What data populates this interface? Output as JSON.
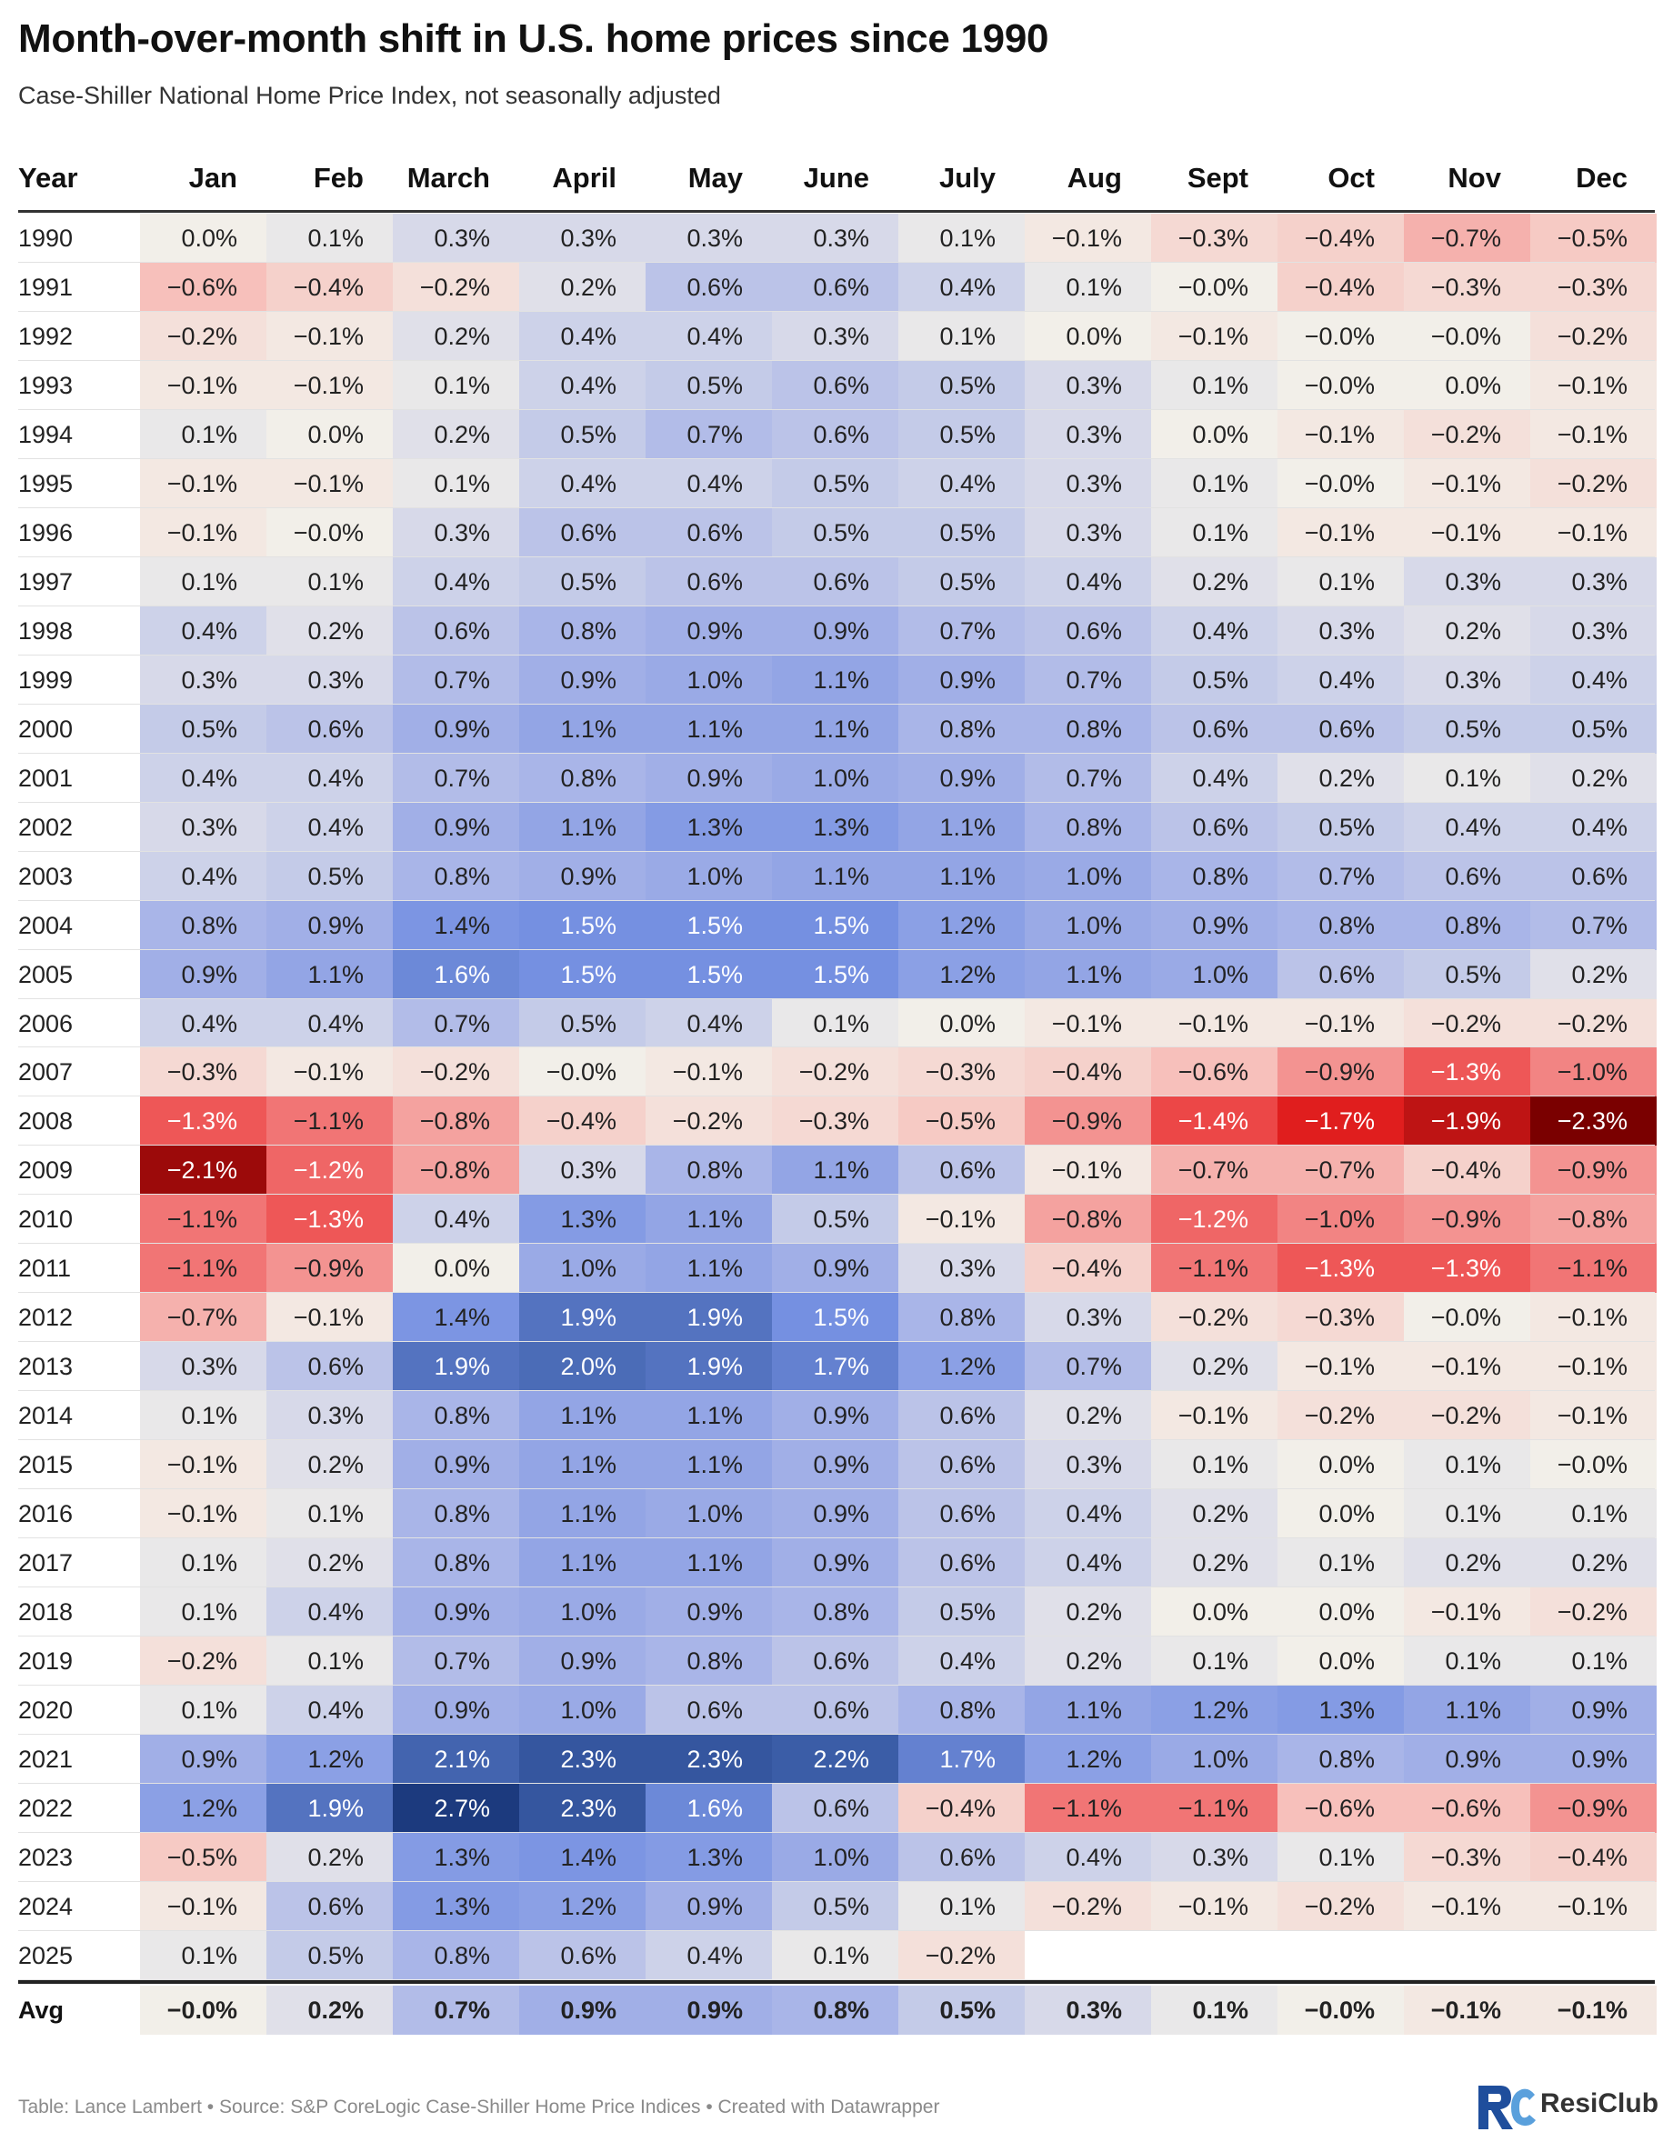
{
  "title": "Month-over-month shift in U.S. home prices since 1990",
  "subtitle": "Case-Shiller National Home Price Index, not seasonally adjusted",
  "footer": "Table: Lance Lambert • Source: S&P CoreLogic Case-Shiller Home Price Indices • Created with Datawrapper",
  "brand": "ResiClub",
  "chart_data": {
    "type": "heatmap",
    "row_header": "Year",
    "columns": [
      "Jan",
      "Feb",
      "March",
      "April",
      "May",
      "June",
      "July",
      "Aug",
      "Sept",
      "Oct",
      "Nov",
      "Dec"
    ],
    "unit": "%",
    "color_scale": {
      "negative": "#7a0000",
      "zero": "#f2efe9",
      "positive": "#1c3a7e"
    },
    "rows": [
      {
        "year": "1990",
        "values": [
          "0.0%",
          "0.1%",
          "0.3%",
          "0.3%",
          "0.3%",
          "0.3%",
          "0.1%",
          "−0.1%",
          "−0.3%",
          "−0.4%",
          "−0.7%",
          "−0.5%"
        ]
      },
      {
        "year": "1991",
        "values": [
          "−0.6%",
          "−0.4%",
          "−0.2%",
          "0.2%",
          "0.6%",
          "0.6%",
          "0.4%",
          "0.1%",
          "−0.0%",
          "−0.4%",
          "−0.3%",
          "−0.3%"
        ]
      },
      {
        "year": "1992",
        "values": [
          "−0.2%",
          "−0.1%",
          "0.2%",
          "0.4%",
          "0.4%",
          "0.3%",
          "0.1%",
          "0.0%",
          "−0.1%",
          "−0.0%",
          "−0.0%",
          "−0.2%"
        ]
      },
      {
        "year": "1993",
        "values": [
          "−0.1%",
          "−0.1%",
          "0.1%",
          "0.4%",
          "0.5%",
          "0.6%",
          "0.5%",
          "0.3%",
          "0.1%",
          "−0.0%",
          "0.0%",
          "−0.1%"
        ]
      },
      {
        "year": "1994",
        "values": [
          "0.1%",
          "0.0%",
          "0.2%",
          "0.5%",
          "0.7%",
          "0.6%",
          "0.5%",
          "0.3%",
          "0.0%",
          "−0.1%",
          "−0.2%",
          "−0.1%"
        ]
      },
      {
        "year": "1995",
        "values": [
          "−0.1%",
          "−0.1%",
          "0.1%",
          "0.4%",
          "0.4%",
          "0.5%",
          "0.4%",
          "0.3%",
          "0.1%",
          "−0.0%",
          "−0.1%",
          "−0.2%"
        ]
      },
      {
        "year": "1996",
        "values": [
          "−0.1%",
          "−0.0%",
          "0.3%",
          "0.6%",
          "0.6%",
          "0.5%",
          "0.5%",
          "0.3%",
          "0.1%",
          "−0.1%",
          "−0.1%",
          "−0.1%"
        ]
      },
      {
        "year": "1997",
        "values": [
          "0.1%",
          "0.1%",
          "0.4%",
          "0.5%",
          "0.6%",
          "0.6%",
          "0.5%",
          "0.4%",
          "0.2%",
          "0.1%",
          "0.3%",
          "0.3%"
        ]
      },
      {
        "year": "1998",
        "values": [
          "0.4%",
          "0.2%",
          "0.6%",
          "0.8%",
          "0.9%",
          "0.9%",
          "0.7%",
          "0.6%",
          "0.4%",
          "0.3%",
          "0.2%",
          "0.3%"
        ]
      },
      {
        "year": "1999",
        "values": [
          "0.3%",
          "0.3%",
          "0.7%",
          "0.9%",
          "1.0%",
          "1.1%",
          "0.9%",
          "0.7%",
          "0.5%",
          "0.4%",
          "0.3%",
          "0.4%"
        ]
      },
      {
        "year": "2000",
        "values": [
          "0.5%",
          "0.6%",
          "0.9%",
          "1.1%",
          "1.1%",
          "1.1%",
          "0.8%",
          "0.8%",
          "0.6%",
          "0.6%",
          "0.5%",
          "0.5%"
        ]
      },
      {
        "year": "2001",
        "values": [
          "0.4%",
          "0.4%",
          "0.7%",
          "0.8%",
          "0.9%",
          "1.0%",
          "0.9%",
          "0.7%",
          "0.4%",
          "0.2%",
          "0.1%",
          "0.2%"
        ]
      },
      {
        "year": "2002",
        "values": [
          "0.3%",
          "0.4%",
          "0.9%",
          "1.1%",
          "1.3%",
          "1.3%",
          "1.1%",
          "0.8%",
          "0.6%",
          "0.5%",
          "0.4%",
          "0.4%"
        ]
      },
      {
        "year": "2003",
        "values": [
          "0.4%",
          "0.5%",
          "0.8%",
          "0.9%",
          "1.0%",
          "1.1%",
          "1.1%",
          "1.0%",
          "0.8%",
          "0.7%",
          "0.6%",
          "0.6%"
        ]
      },
      {
        "year": "2004",
        "values": [
          "0.8%",
          "0.9%",
          "1.4%",
          "1.5%",
          "1.5%",
          "1.5%",
          "1.2%",
          "1.0%",
          "0.9%",
          "0.8%",
          "0.8%",
          "0.7%"
        ]
      },
      {
        "year": "2005",
        "values": [
          "0.9%",
          "1.1%",
          "1.6%",
          "1.5%",
          "1.5%",
          "1.5%",
          "1.2%",
          "1.1%",
          "1.0%",
          "0.6%",
          "0.5%",
          "0.2%"
        ]
      },
      {
        "year": "2006",
        "values": [
          "0.4%",
          "0.4%",
          "0.7%",
          "0.5%",
          "0.4%",
          "0.1%",
          "0.0%",
          "−0.1%",
          "−0.1%",
          "−0.1%",
          "−0.2%",
          "−0.2%"
        ]
      },
      {
        "year": "2007",
        "values": [
          "−0.3%",
          "−0.1%",
          "−0.2%",
          "−0.0%",
          "−0.1%",
          "−0.2%",
          "−0.3%",
          "−0.4%",
          "−0.6%",
          "−0.9%",
          "−1.3%",
          "−1.0%"
        ]
      },
      {
        "year": "2008",
        "values": [
          "−1.3%",
          "−1.1%",
          "−0.8%",
          "−0.4%",
          "−0.2%",
          "−0.3%",
          "−0.5%",
          "−0.9%",
          "−1.4%",
          "−1.7%",
          "−1.9%",
          "−2.3%"
        ]
      },
      {
        "year": "2009",
        "values": [
          "−2.1%",
          "−1.2%",
          "−0.8%",
          "0.3%",
          "0.8%",
          "1.1%",
          "0.6%",
          "−0.1%",
          "−0.7%",
          "−0.7%",
          "−0.4%",
          "−0.9%"
        ]
      },
      {
        "year": "2010",
        "values": [
          "−1.1%",
          "−1.3%",
          "0.4%",
          "1.3%",
          "1.1%",
          "0.5%",
          "−0.1%",
          "−0.8%",
          "−1.2%",
          "−1.0%",
          "−0.9%",
          "−0.8%"
        ]
      },
      {
        "year": "2011",
        "values": [
          "−1.1%",
          "−0.9%",
          "0.0%",
          "1.0%",
          "1.1%",
          "0.9%",
          "0.3%",
          "−0.4%",
          "−1.1%",
          "−1.3%",
          "−1.3%",
          "−1.1%"
        ]
      },
      {
        "year": "2012",
        "values": [
          "−0.7%",
          "−0.1%",
          "1.4%",
          "1.9%",
          "1.9%",
          "1.5%",
          "0.8%",
          "0.3%",
          "−0.2%",
          "−0.3%",
          "−0.0%",
          "−0.1%"
        ]
      },
      {
        "year": "2013",
        "values": [
          "0.3%",
          "0.6%",
          "1.9%",
          "2.0%",
          "1.9%",
          "1.7%",
          "1.2%",
          "0.7%",
          "0.2%",
          "−0.1%",
          "−0.1%",
          "−0.1%"
        ]
      },
      {
        "year": "2014",
        "values": [
          "0.1%",
          "0.3%",
          "0.8%",
          "1.1%",
          "1.1%",
          "0.9%",
          "0.6%",
          "0.2%",
          "−0.1%",
          "−0.2%",
          "−0.2%",
          "−0.1%"
        ]
      },
      {
        "year": "2015",
        "values": [
          "−0.1%",
          "0.2%",
          "0.9%",
          "1.1%",
          "1.1%",
          "0.9%",
          "0.6%",
          "0.3%",
          "0.1%",
          "0.0%",
          "0.1%",
          "−0.0%"
        ]
      },
      {
        "year": "2016",
        "values": [
          "−0.1%",
          "0.1%",
          "0.8%",
          "1.1%",
          "1.0%",
          "0.9%",
          "0.6%",
          "0.4%",
          "0.2%",
          "0.0%",
          "0.1%",
          "0.1%"
        ]
      },
      {
        "year": "2017",
        "values": [
          "0.1%",
          "0.2%",
          "0.8%",
          "1.1%",
          "1.1%",
          "0.9%",
          "0.6%",
          "0.4%",
          "0.2%",
          "0.1%",
          "0.2%",
          "0.2%"
        ]
      },
      {
        "year": "2018",
        "values": [
          "0.1%",
          "0.4%",
          "0.9%",
          "1.0%",
          "0.9%",
          "0.8%",
          "0.5%",
          "0.2%",
          "0.0%",
          "0.0%",
          "−0.1%",
          "−0.2%"
        ]
      },
      {
        "year": "2019",
        "values": [
          "−0.2%",
          "0.1%",
          "0.7%",
          "0.9%",
          "0.8%",
          "0.6%",
          "0.4%",
          "0.2%",
          "0.1%",
          "0.0%",
          "0.1%",
          "0.1%"
        ]
      },
      {
        "year": "2020",
        "values": [
          "0.1%",
          "0.4%",
          "0.9%",
          "1.0%",
          "0.6%",
          "0.6%",
          "0.8%",
          "1.1%",
          "1.2%",
          "1.3%",
          "1.1%",
          "0.9%"
        ]
      },
      {
        "year": "2021",
        "values": [
          "0.9%",
          "1.2%",
          "2.1%",
          "2.3%",
          "2.3%",
          "2.2%",
          "1.7%",
          "1.2%",
          "1.0%",
          "0.8%",
          "0.9%",
          "0.9%"
        ]
      },
      {
        "year": "2022",
        "values": [
          "1.2%",
          "1.9%",
          "2.7%",
          "2.3%",
          "1.6%",
          "0.6%",
          "−0.4%",
          "−1.1%",
          "−1.1%",
          "−0.6%",
          "−0.6%",
          "−0.9%"
        ]
      },
      {
        "year": "2023",
        "values": [
          "−0.5%",
          "0.2%",
          "1.3%",
          "1.4%",
          "1.3%",
          "1.0%",
          "0.6%",
          "0.4%",
          "0.3%",
          "0.1%",
          "−0.3%",
          "−0.4%"
        ]
      },
      {
        "year": "2024",
        "values": [
          "−0.1%",
          "0.6%",
          "1.3%",
          "1.2%",
          "0.9%",
          "0.5%",
          "0.1%",
          "−0.2%",
          "−0.1%",
          "−0.2%",
          "−0.1%",
          "−0.1%"
        ]
      },
      {
        "year": "2025",
        "values": [
          "0.1%",
          "0.5%",
          "0.8%",
          "0.6%",
          "0.4%",
          "0.1%",
          "−0.2%",
          "",
          "",
          "",
          "",
          ""
        ]
      }
    ],
    "avg_row": {
      "label": "Avg",
      "values": [
        "−0.0%",
        "0.2%",
        "0.7%",
        "0.9%",
        "0.9%",
        "0.8%",
        "0.5%",
        "0.3%",
        "0.1%",
        "−0.0%",
        "−0.1%",
        "−0.1%"
      ]
    }
  }
}
